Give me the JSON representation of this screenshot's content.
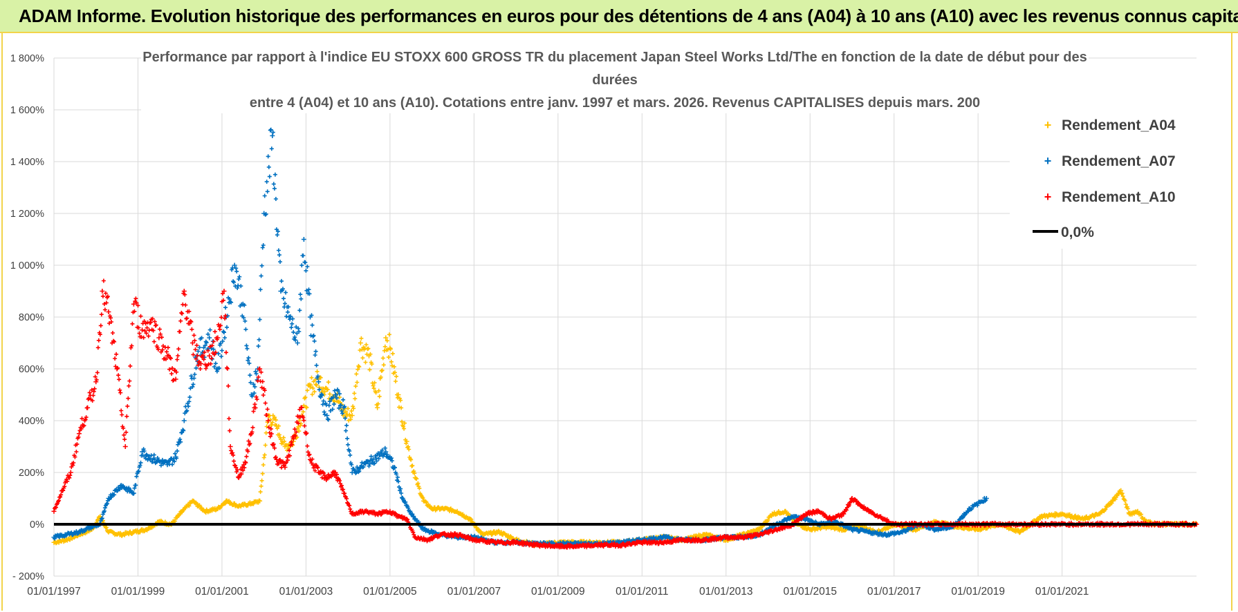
{
  "banner": {
    "title": "ADAM Informe. Evolution historique des performances en euros pour des détentions de 4 ans (A04) à 10 ans (A10) avec les revenus connus capitalisés"
  },
  "colors": {
    "banner_bg": "#d9f2a6",
    "banner_border": "#f2d34a",
    "A04": "#ffc000",
    "A07": "#0070c0",
    "A10": "#ff0000",
    "zero_line": "#000000",
    "grid": "#d9d9d9"
  },
  "chart_data": {
    "type": "scatter",
    "title_lines": [
      "Performance par rapport à l'indice EU STOXX 600 GROSS TR  du placement Japan Steel Works Ltd/The en fonction de la date de début pour des",
      "durées",
      "entre 4 (A04) et 10 ans (A10).  Cotations entre janv. 1997 et mars. 2026. Revenus CAPITALISES depuis mars. 200"
    ],
    "xlabel": "",
    "ylabel": "",
    "ylim": [
      -200,
      1800
    ],
    "xlim": [
      1997.0,
      2024.2
    ],
    "y_ticks": [
      -200,
      0,
      200,
      400,
      600,
      800,
      1000,
      1200,
      1400,
      1600,
      1800
    ],
    "y_tick_labels": [
      "- 200%",
      "0%",
      "200%",
      "400%",
      "600%",
      "800%",
      "1 000%",
      "1 200%",
      "1 400%",
      "1 600%",
      "1 800%"
    ],
    "x_ticks": [
      1997,
      1999,
      2001,
      2003,
      2005,
      2007,
      2009,
      2011,
      2013,
      2015,
      2017,
      2019,
      2021
    ],
    "x_tick_labels": [
      "01/01/1997",
      "01/01/1999",
      "01/01/2001",
      "01/01/2003",
      "01/01/2005",
      "01/01/2007",
      "01/01/2009",
      "01/01/2011",
      "01/01/2013",
      "01/01/2015",
      "01/01/2017",
      "01/01/2019",
      "01/01/2021"
    ],
    "legend": {
      "position": "top-right",
      "entries": [
        "Rendement_A04",
        "Rendement_A07",
        "Rendement_A10",
        "0,0%"
      ]
    },
    "series": [
      {
        "name": "Rendement_A04",
        "marker": "+",
        "x": [
          1997.0,
          1997.3,
          1997.6,
          1997.9,
          1998.1,
          1998.3,
          1998.6,
          1998.9,
          1999.2,
          1999.5,
          1999.8,
          2000.0,
          2000.3,
          2000.6,
          2000.9,
          2001.1,
          2001.4,
          2001.7,
          2001.9,
          2002.1,
          2002.3,
          2002.5,
          2002.7,
          2002.9,
          2003.1,
          2003.3,
          2003.5,
          2003.7,
          2003.9,
          2004.1,
          2004.3,
          2004.5,
          2004.7,
          2004.9,
          2005.0,
          2005.2,
          2005.4,
          2005.6,
          2005.8,
          2006.0,
          2006.3,
          2006.6,
          2006.9,
          2007.2,
          2007.6,
          2008.0,
          2008.5,
          2009.0,
          2009.5,
          2010.0,
          2010.5,
          2011.0,
          2011.5,
          2012.0,
          2012.5,
          2013.0,
          2013.4,
          2013.8,
          2014.1,
          2014.4,
          2014.7,
          2015.0,
          2015.4,
          2015.8,
          2016.2,
          2016.6,
          2017.0,
          2017.5,
          2018.0,
          2018.5,
          2019.0,
          2019.5,
          2020.0,
          2020.5,
          2021.0,
          2021.5,
          2021.9,
          2022.2,
          2022.4,
          2022.6,
          2022.8,
          2023.0,
          2023.3,
          2023.6,
          2023.9,
          2024.2
        ],
        "y": [
          -70,
          -60,
          -40,
          -20,
          30,
          -30,
          -40,
          -30,
          -20,
          10,
          0,
          40,
          90,
          50,
          60,
          90,
          70,
          80,
          90,
          420,
          380,
          300,
          320,
          420,
          530,
          560,
          520,
          500,
          430,
          420,
          700,
          650,
          450,
          720,
          680,
          500,
          320,
          180,
          90,
          60,
          60,
          50,
          20,
          -40,
          -30,
          -60,
          -80,
          -70,
          -70,
          -70,
          -70,
          -60,
          -50,
          -60,
          -40,
          -60,
          -40,
          -20,
          40,
          50,
          0,
          -20,
          -10,
          -20,
          -10,
          -30,
          0,
          -20,
          10,
          -10,
          -20,
          0,
          -30,
          30,
          40,
          20,
          40,
          90,
          130,
          40,
          50,
          10,
          0,
          0,
          0,
          0
        ]
      },
      {
        "name": "Rendement_A07",
        "marker": "+",
        "x": [
          1997.0,
          1997.3,
          1997.6,
          1997.9,
          1998.1,
          1998.3,
          1998.6,
          1998.9,
          1999.1,
          1999.4,
          1999.7,
          1999.9,
          2000.1,
          2000.4,
          2000.7,
          2000.9,
          2001.1,
          2001.3,
          2001.5,
          2001.7,
          2001.85,
          2002.0,
          2002.2,
          2002.4,
          2002.6,
          2002.8,
          2002.95,
          2003.1,
          2003.3,
          2003.5,
          2003.7,
          2003.9,
          2004.1,
          2004.3,
          2004.6,
          2004.9,
          2005.1,
          2005.3,
          2005.5,
          2005.8,
          2006.2,
          2006.6,
          2007.0,
          2007.5,
          2008.0,
          2008.5,
          2009.0,
          2009.5,
          2010.0,
          2010.5,
          2011.0,
          2011.5,
          2012.0,
          2012.5,
          2013.0,
          2013.4,
          2013.8,
          2014.2,
          2014.6,
          2014.9,
          2015.2,
          2015.6,
          2016.0,
          2016.4,
          2016.8,
          2017.2,
          2017.6,
          2018.0,
          2018.4,
          2018.8,
          2019.0,
          2019.2
        ],
        "y": [
          -50,
          -40,
          -30,
          -10,
          0,
          100,
          150,
          120,
          280,
          250,
          230,
          260,
          400,
          650,
          720,
          600,
          800,
          1000,
          850,
          500,
          600,
          1200,
          1500,
          900,
          800,
          700,
          1100,
          800,
          550,
          420,
          500,
          450,
          200,
          220,
          250,
          280,
          220,
          100,
          40,
          -20,
          -40,
          -50,
          -50,
          -70,
          -70,
          -75,
          -75,
          -75,
          -75,
          -70,
          -60,
          -50,
          -60,
          -60,
          -50,
          -50,
          -40,
          0,
          30,
          20,
          0,
          10,
          -20,
          -30,
          -40,
          -30,
          0,
          -20,
          -10,
          60,
          80,
          100
        ]
      },
      {
        "name": "Rendement_A10",
        "marker": "+",
        "x": [
          1997.0,
          1997.2,
          1997.4,
          1997.6,
          1997.8,
          1998.0,
          1998.15,
          1998.3,
          1998.5,
          1998.7,
          1998.9,
          1999.1,
          1999.3,
          1999.5,
          1999.7,
          1999.9,
          2000.1,
          2000.3,
          2000.5,
          2000.7,
          2000.9,
          2001.05,
          2001.2,
          2001.4,
          2001.55,
          2001.7,
          2001.9,
          2002.1,
          2002.3,
          2002.5,
          2002.7,
          2002.9,
          2003.1,
          2003.3,
          2003.5,
          2003.7,
          2003.9,
          2004.1,
          2004.4,
          2004.7,
          2005.0,
          2005.2,
          2005.4,
          2005.6,
          2005.9,
          2006.2,
          2006.6,
          2007.0,
          2007.5,
          2008.0,
          2008.5,
          2009.0,
          2009.5,
          2010.0,
          2010.5,
          2011.0,
          2011.5,
          2012.0,
          2012.5,
          2013.0,
          2013.4,
          2013.8,
          2014.2,
          2014.6,
          2014.9,
          2015.2,
          2015.5,
          2015.8,
          2016.0,
          2016.15,
          2016.3,
          2017.0,
          2018.0,
          2019.0,
          2020.0,
          2021.0,
          2022.0,
          2023.0,
          2024.2
        ],
        "y": [
          50,
          130,
          200,
          350,
          450,
          550,
          900,
          820,
          600,
          300,
          850,
          750,
          780,
          720,
          650,
          560,
          900,
          700,
          620,
          650,
          720,
          900,
          300,
          180,
          240,
          350,
          600,
          400,
          250,
          220,
          330,
          450,
          250,
          200,
          180,
          200,
          120,
          40,
          50,
          40,
          50,
          30,
          20,
          -50,
          -60,
          -40,
          -40,
          -60,
          -70,
          -70,
          -80,
          -85,
          -85,
          -80,
          -80,
          -70,
          -70,
          -60,
          -60,
          -50,
          -50,
          -40,
          -20,
          0,
          40,
          50,
          20,
          40,
          100,
          80,
          60,
          0,
          0,
          0,
          0,
          0,
          0,
          0,
          0
        ]
      }
    ],
    "zero_line": {
      "name": "0,0%",
      "y": 0
    }
  }
}
